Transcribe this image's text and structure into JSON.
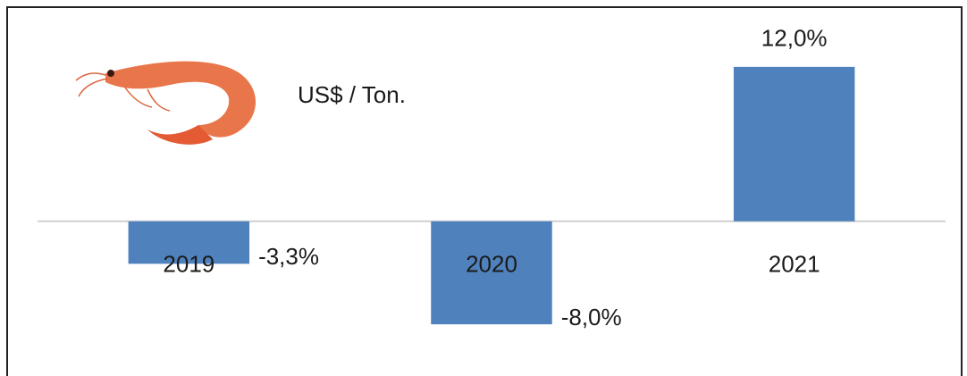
{
  "chart_data": {
    "type": "bar",
    "subtitle": "US$ / Ton.",
    "categories": [
      "2019",
      "2020",
      "2021"
    ],
    "values": [
      -3.3,
      -8.0,
      12.0
    ],
    "value_labels": [
      "-3,3%",
      "-8,0%",
      "12,0%"
    ],
    "color": "#4f81bd",
    "ylim": [
      -11.6,
      16.5
    ]
  }
}
